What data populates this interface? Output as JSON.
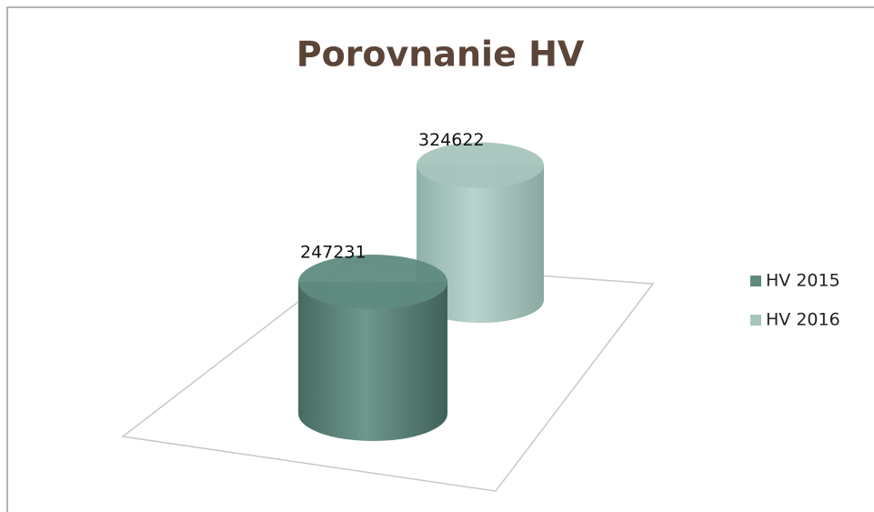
{
  "chart_data": {
    "type": "bar",
    "title": "Porovnanie HV",
    "categories": [
      null
    ],
    "series": [
      {
        "name": "HV 2015",
        "color": "#5f8a80",
        "values": [
          247231
        ]
      },
      {
        "name": "HV 2016",
        "color": "#a6c5bd",
        "values": [
          324622
        ]
      }
    ],
    "legend": "right"
  }
}
